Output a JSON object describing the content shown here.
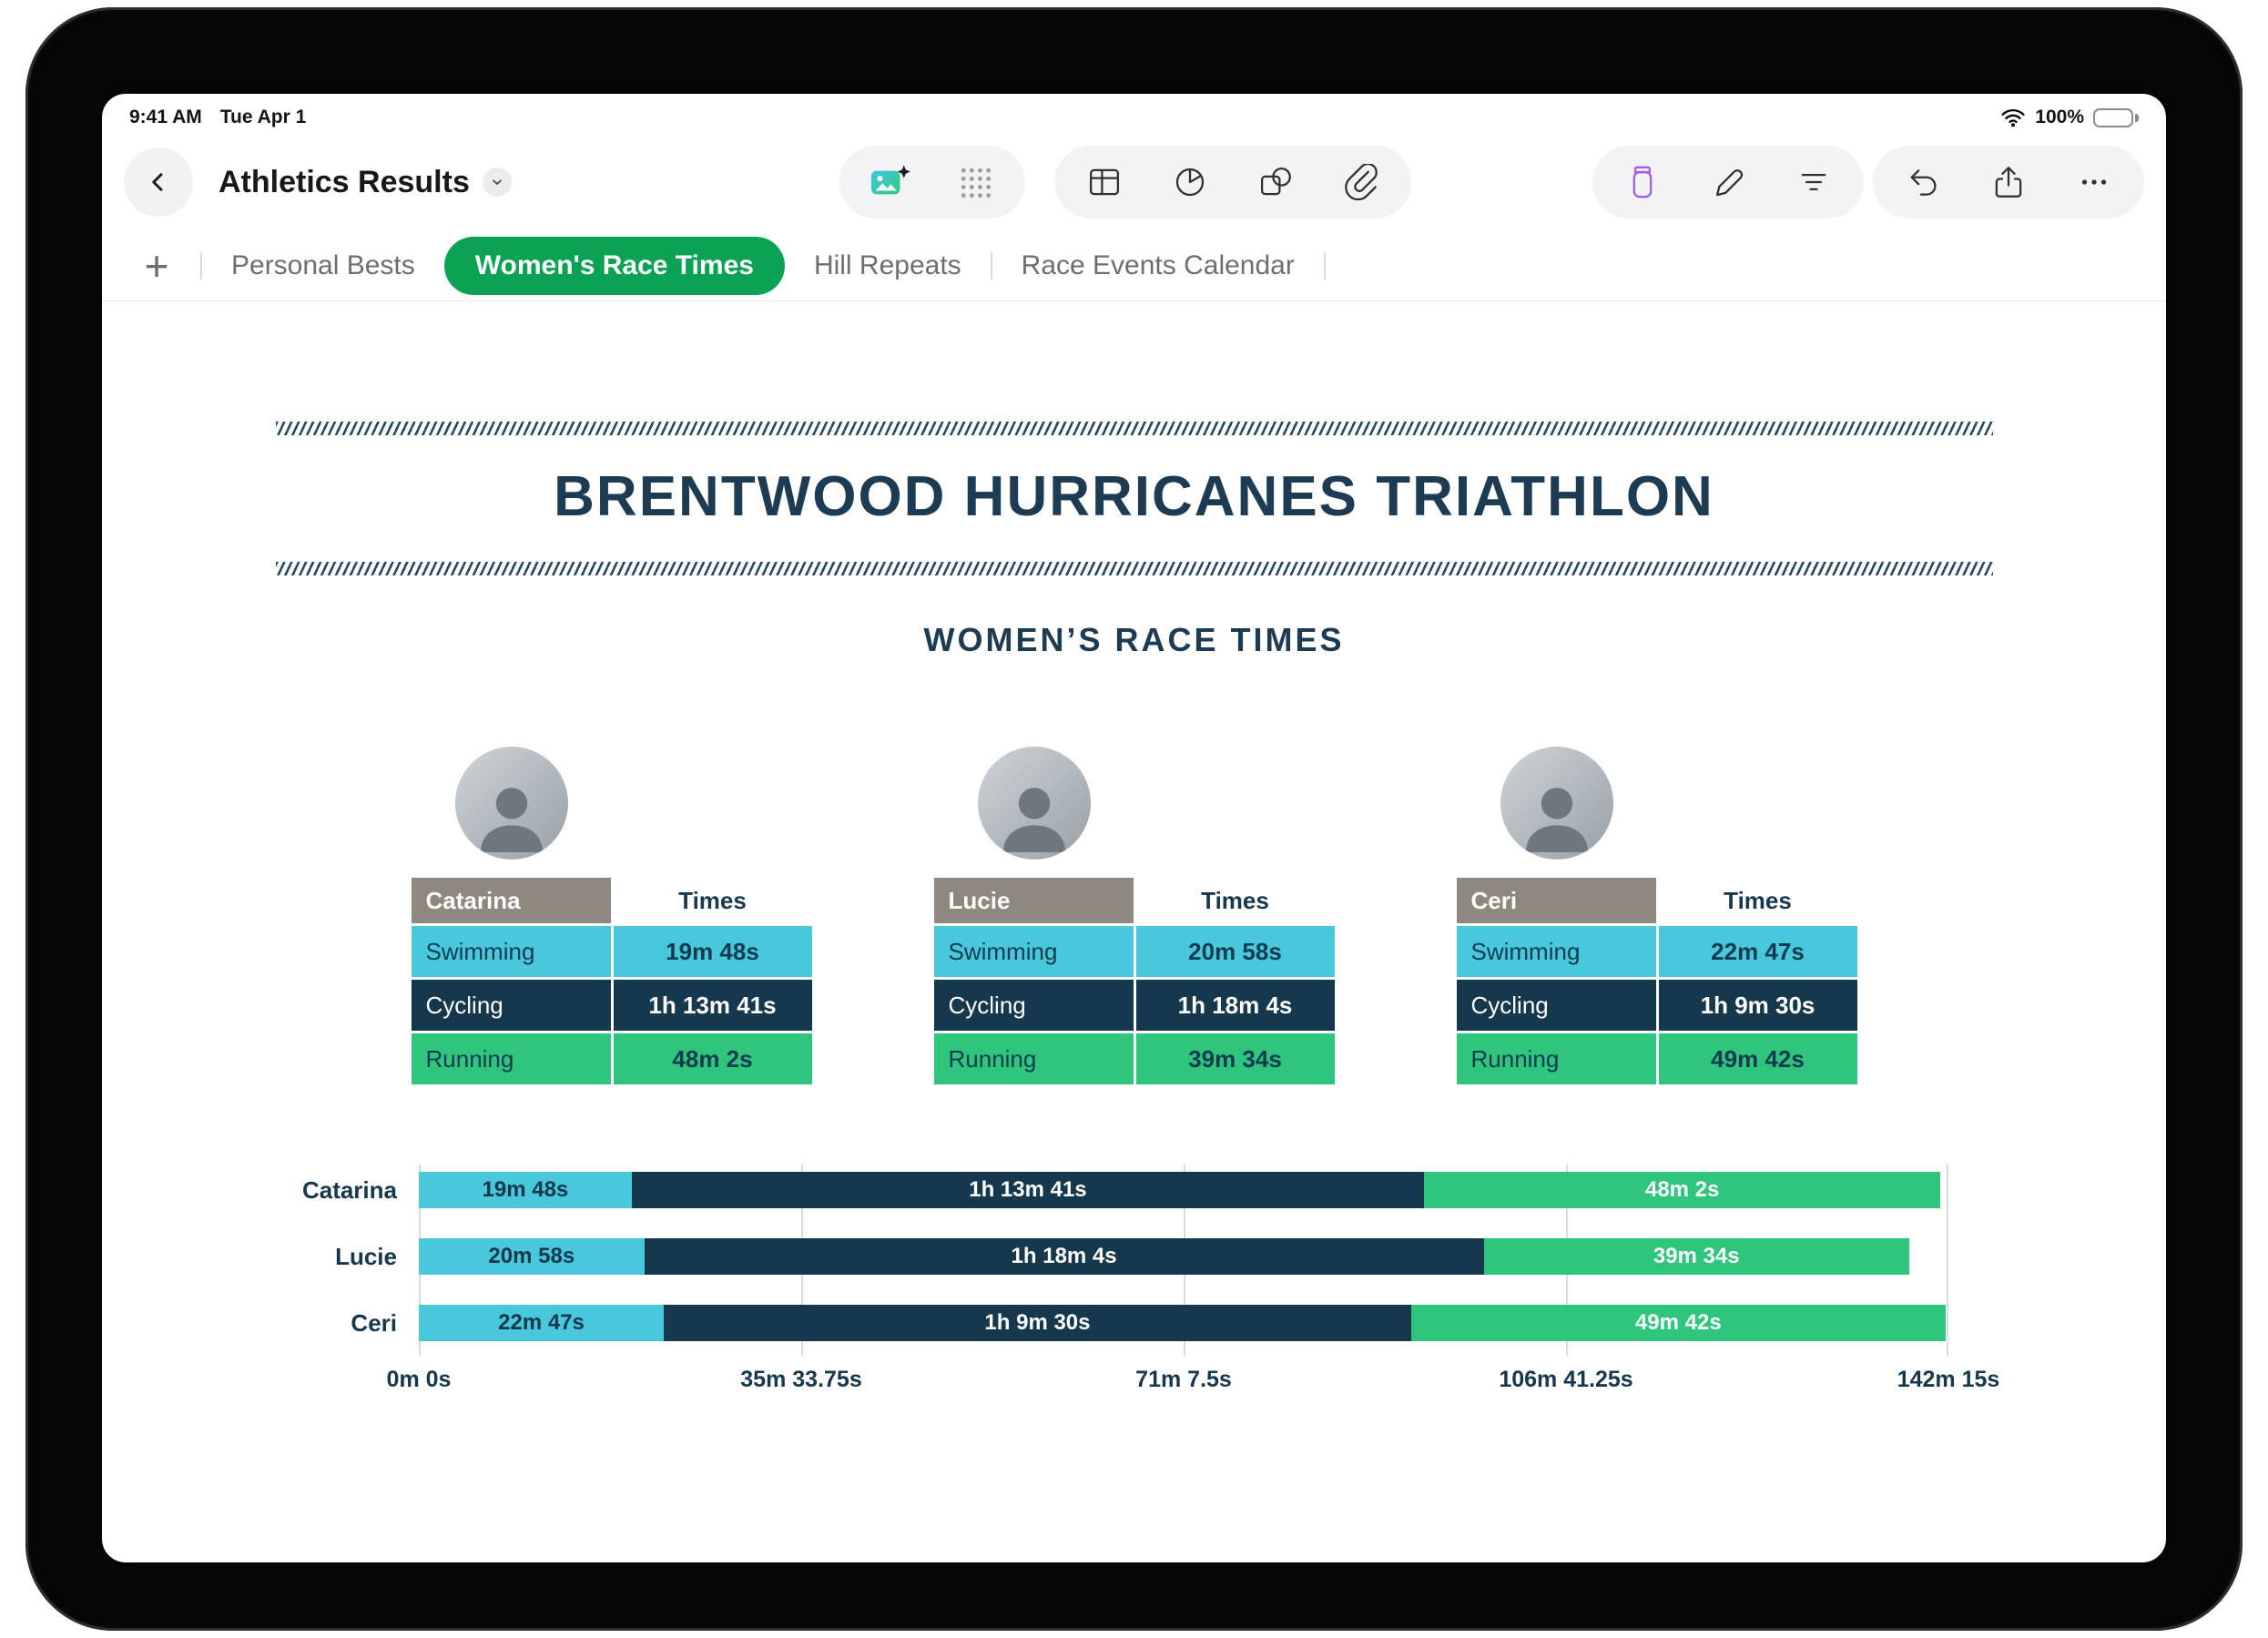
{
  "status_bar": {
    "time": "9:41 AM",
    "date": "Tue Apr 1",
    "battery_percent": "100%"
  },
  "toolbar": {
    "title": "Athletics Results"
  },
  "tab_bar": {
    "tabs": [
      {
        "label": "Personal Bests",
        "active": false
      },
      {
        "label": "Women's Race Times",
        "active": true
      },
      {
        "label": "Hill Repeats",
        "active": false
      },
      {
        "label": "Race Events Calendar",
        "active": false
      }
    ]
  },
  "document": {
    "title": "BRENTWOOD HURRICANES TRIATHLON",
    "subtitle": "WOMEN’S RACE TIMES"
  },
  "tables": [
    {
      "name": "Catarina",
      "times_header": "Times",
      "rows": [
        {
          "label": "Swimming",
          "value": "19m 48s"
        },
        {
          "label": "Cycling",
          "value": "1h 13m 41s"
        },
        {
          "label": "Running",
          "value": "48m 2s"
        }
      ]
    },
    {
      "name": "Lucie",
      "times_header": "Times",
      "rows": [
        {
          "label": "Swimming",
          "value": "20m 58s"
        },
        {
          "label": "Cycling",
          "value": "1h 18m 4s"
        },
        {
          "label": "Running",
          "value": "39m 34s"
        }
      ]
    },
    {
      "name": "Ceri",
      "times_header": "Times",
      "rows": [
        {
          "label": "Swimming",
          "value": "22m 47s"
        },
        {
          "label": "Cycling",
          "value": "1h 9m 30s"
        },
        {
          "label": "Running",
          "value": "49m 42s"
        }
      ]
    }
  ],
  "chart_data": {
    "type": "bar",
    "variant": "horizontal-stacked",
    "categories": [
      "Catarina",
      "Lucie",
      "Ceri"
    ],
    "series": [
      {
        "name": "Swimming",
        "color": "#49C7DB",
        "label_color": "#13384E",
        "values_minutes": [
          19.8,
          20.9667,
          22.7833
        ],
        "labels": [
          "19m 48s",
          "20m 58s",
          "22m 47s"
        ]
      },
      {
        "name": "Cycling",
        "color": "#16384C",
        "label_color": "#FFFFFF",
        "values_minutes": [
          73.6833,
          78.0667,
          69.5
        ],
        "labels": [
          "1h 13m 41s",
          "1h 18m 4s",
          "1h 9m 30s"
        ]
      },
      {
        "name": "Running",
        "color": "#2FC57D",
        "label_color": "#FFFFFF",
        "values_minutes": [
          48.0333,
          39.5667,
          49.7
        ],
        "labels": [
          "48m 2s",
          "39m 34s",
          "49m 42s"
        ]
      }
    ],
    "x_ticks": [
      "0m 0s",
      "35m 33.75s",
      "71m 7.5s",
      "106m 41.25s",
      "142m 15s"
    ],
    "x_max_minutes": 142.25,
    "grid": true
  },
  "colors": {
    "accent_green": "#0BA353",
    "navy": "#1D3B52",
    "cyan": "#49C7DB",
    "mint_green": "#2FC57D",
    "taupe": "#8F887E",
    "purple": "#A15CE8"
  }
}
